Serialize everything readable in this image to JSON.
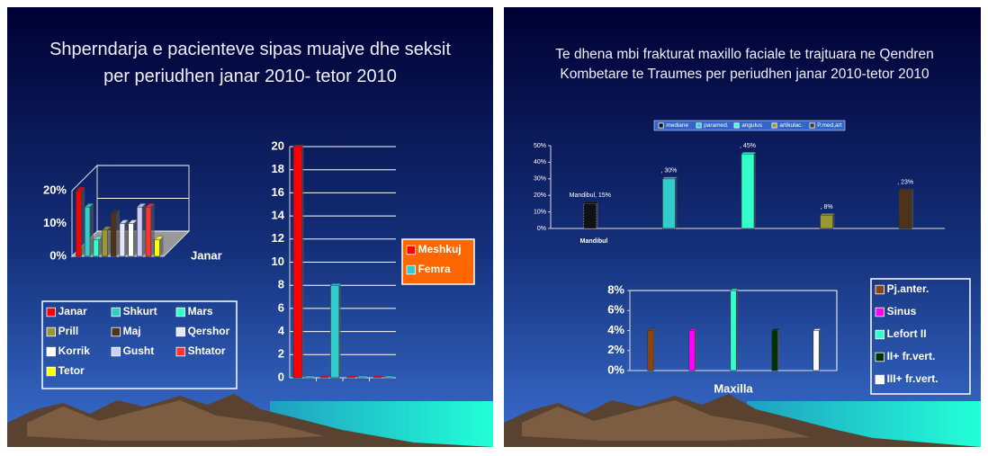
{
  "slides": [
    {
      "title": "Shperndarja e pacienteve sipas muajve dhe seksit per periudhen janar 2010- tetor 2010"
    },
    {
      "title": "Te dhena mbi frakturat maxillo faciale te trajtuara ne Qendren Kombetare te Traumes per periudhen janar 2010-tetor 2010"
    }
  ],
  "chart_data": [
    {
      "type": "bar",
      "3d": true,
      "categories": [
        "Janar"
      ],
      "series": [
        {
          "name": "Janar",
          "color": "#ff0000",
          "values": [
            20
          ]
        },
        {
          "name": "Shkurt",
          "color": "#33cccc",
          "values": [
            15
          ]
        },
        {
          "name": "Mars",
          "color": "#33ffcc",
          "values": [
            5
          ]
        },
        {
          "name": "Prill",
          "color": "#999933",
          "values": [
            8
          ]
        },
        {
          "name": "Maj",
          "color": "#4d3319",
          "values": [
            13
          ]
        },
        {
          "name": "Qershor",
          "color": "#e6e6ff",
          "values": [
            10
          ]
        },
        {
          "name": "Korrik",
          "color": "#ffffff",
          "values": [
            10
          ]
        },
        {
          "name": "Gusht",
          "color": "#ccccff",
          "values": [
            15
          ]
        },
        {
          "name": "Shtator",
          "color": "#ff3333",
          "values": [
            15
          ]
        },
        {
          "name": "Tetor",
          "color": "#ffff00",
          "values": [
            5
          ]
        }
      ],
      "ylim": [
        0,
        20
      ],
      "yticks": [
        {
          "value": 0,
          "label": "0%"
        },
        {
          "value": 10,
          "label": "10%"
        },
        {
          "value": 20,
          "label": "20%"
        }
      ],
      "grid": true,
      "legend": "bottom"
    },
    {
      "type": "bar",
      "categories": [
        null,
        null,
        null,
        null
      ],
      "series": [
        {
          "name": "Meshkuj",
          "color": "#ff0000",
          "values": [
            20,
            0,
            0,
            0
          ]
        },
        {
          "name": "Femra",
          "color": "#33cccc",
          "values": [
            0,
            8,
            0,
            0
          ]
        }
      ],
      "ylim": [
        0,
        20
      ],
      "yticks": [
        0,
        2,
        4,
        6,
        8,
        10,
        12,
        14,
        16,
        18,
        20
      ],
      "grid": true,
      "legend": "right"
    },
    {
      "type": "bar",
      "categories": [
        "Mandibul"
      ],
      "series": [
        {
          "name": "mediane",
          "color": "#111111",
          "values": [
            15
          ],
          "value_labels": [
            "Mandibul, 15%"
          ]
        },
        {
          "name": "paramed.",
          "color": "#33cccc",
          "values": [
            30
          ],
          "value_labels": [
            ", 30%"
          ]
        },
        {
          "name": "angulus",
          "color": "#33ffcc",
          "values": [
            45
          ],
          "value_labels": [
            ", 45%"
          ]
        },
        {
          "name": "artikulac.",
          "color": "#999933",
          "values": [
            8
          ],
          "value_labels": [
            ", 8%"
          ]
        },
        {
          "name": "P.med,art",
          "color": "#4d3319",
          "values": [
            23
          ],
          "value_labels": [
            ", 23%"
          ]
        }
      ],
      "ylim": [
        0,
        50
      ],
      "yticks": [
        {
          "value": 0,
          "label": "0%"
        },
        {
          "value": 10,
          "label": "10%"
        },
        {
          "value": 20,
          "label": "20%"
        },
        {
          "value": 30,
          "label": "30%"
        },
        {
          "value": 40,
          "label": "40%"
        },
        {
          "value": 50,
          "label": "50%"
        }
      ],
      "grid": false,
      "legend": "top"
    },
    {
      "type": "bar",
      "categories": [
        "Maxilla"
      ],
      "series": [
        {
          "name": "Pj.anter.",
          "color": "#8b4513",
          "values": [
            4
          ]
        },
        {
          "name": "Sinus",
          "color": "#ff00ff",
          "values": [
            4
          ]
        },
        {
          "name": "Lefort II",
          "color": "#33ffcc",
          "values": [
            8
          ]
        },
        {
          "name": "II+ fr.vert.",
          "color": "#003300",
          "values": [
            4
          ]
        },
        {
          "name": "III+ fr.vert.",
          "color": "#ffffff",
          "values": [
            4
          ]
        }
      ],
      "ylim": [
        0,
        8
      ],
      "yticks": [
        {
          "value": 0,
          "label": "0%"
        },
        {
          "value": 2,
          "label": "2%"
        },
        {
          "value": 4,
          "label": "4%"
        },
        {
          "value": 6,
          "label": "6%"
        },
        {
          "value": 8,
          "label": "8%"
        }
      ],
      "grid": false,
      "legend": "right"
    }
  ]
}
